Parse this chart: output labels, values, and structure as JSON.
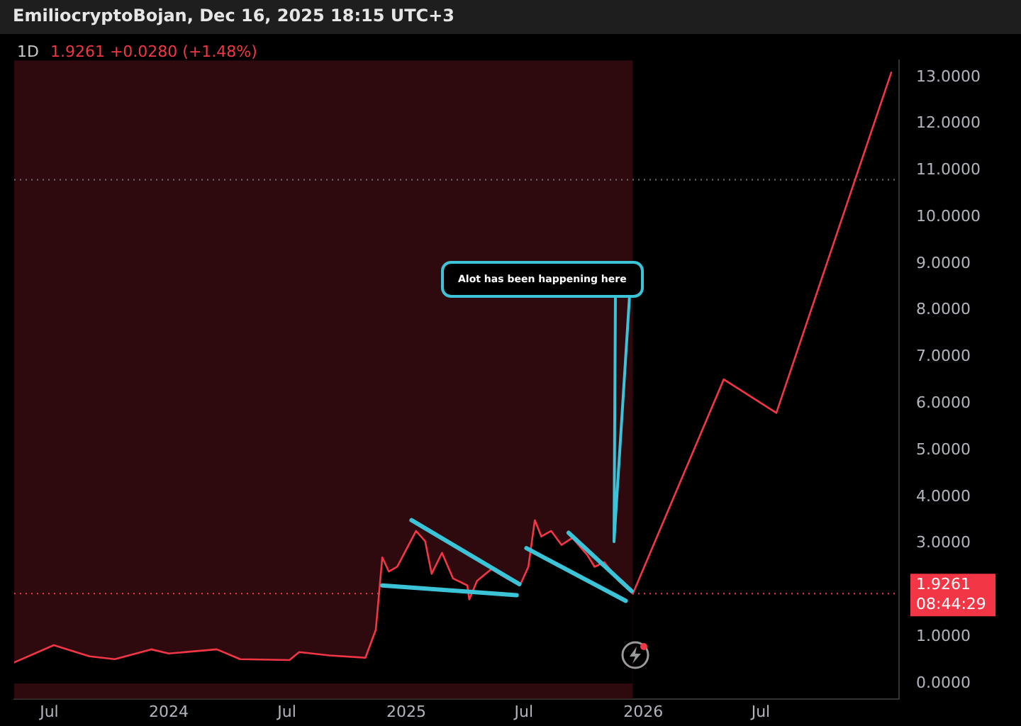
{
  "chart_data": {
    "type": "area",
    "title": "EmiliocryptoBojan, Dec 16, 2025 18:15 UTC+3",
    "subtitle": "1D",
    "annotations": [
      "1.9261 +0.0280 (+1.48%)",
      "Alot has been happening here",
      "08:44:29"
    ],
    "xlim": [
      "2023-05-08",
      "2027-01-30"
    ],
    "xticks": [
      {
        "value": "2023-07-01",
        "label": "Jul"
      },
      {
        "value": "2024-01-01",
        "label": "2024"
      },
      {
        "value": "2024-07-01",
        "label": "Jul"
      },
      {
        "value": "2025-01-01",
        "label": "2025"
      },
      {
        "value": "2025-07-01",
        "label": "Jul"
      },
      {
        "value": "2026-01-01",
        "label": "2026"
      },
      {
        "value": "2026-07-01",
        "label": "Jul"
      }
    ],
    "ylim": [
      -0.33,
      13.36
    ],
    "yticks": [
      {
        "value": 0,
        "label": "0.0000"
      },
      {
        "value": 1,
        "label": "1.0000"
      },
      {
        "value": 3,
        "label": "3.0000"
      },
      {
        "value": 4,
        "label": "4.0000"
      },
      {
        "value": 5,
        "label": "5.0000"
      },
      {
        "value": 6,
        "label": "6.0000"
      },
      {
        "value": 7,
        "label": "7.0000"
      },
      {
        "value": 8,
        "label": "8.0000"
      },
      {
        "value": 9,
        "label": "9.0000"
      },
      {
        "value": 10,
        "label": "10.0000"
      },
      {
        "value": 11,
        "label": "11.0000"
      },
      {
        "value": 12,
        "label": "12.0000"
      },
      {
        "value": 13,
        "label": "13.0000"
      }
    ],
    "grid": false,
    "legend": false,
    "bands": [
      {
        "axis": "x",
        "from": "2023-05-08",
        "to": "2025-12-16",
        "color": "#2e0a0e"
      }
    ],
    "ref_lines": [
      {
        "axis": "y",
        "value": 10.8,
        "color": "#6f6f6f",
        "line_style": "dotted"
      },
      {
        "axis": "y",
        "value": 1.9261,
        "label": "1.9261",
        "color": "#f23645",
        "line_style": "dotted"
      }
    ],
    "series": [
      {
        "type": "area",
        "color": "#f23645",
        "x": [
          "2023-05-08",
          "2023-07-08",
          "2023-09-01",
          "2023-10-10",
          "2023-12-05",
          "2024-01-01",
          "2024-03-15",
          "2024-04-20",
          "2024-07-05",
          "2024-07-20",
          "2024-09-05",
          "2024-10-30",
          "2024-11-15",
          "2024-11-25",
          "2024-12-05",
          "2024-12-18",
          "2025-01-16",
          "2025-01-30",
          "2025-02-09",
          "2025-02-25",
          "2025-03-14",
          "2025-04-05",
          "2025-04-08",
          "2025-04-20",
          "2025-05-12",
          "2025-06-05",
          "2025-06-25",
          "2025-07-08",
          "2025-07-18",
          "2025-07-28",
          "2025-08-12",
          "2025-08-28",
          "2025-09-14",
          "2025-10-07",
          "2025-10-18",
          "2025-11-02",
          "2025-11-24",
          "2025-12-16"
        ],
        "values": [
          0.45,
          0.82,
          0.58,
          0.52,
          0.73,
          0.64,
          0.73,
          0.52,
          0.5,
          0.67,
          0.6,
          0.55,
          1.15,
          2.7,
          2.4,
          2.5,
          3.27,
          3.05,
          2.35,
          2.8,
          2.25,
          2.1,
          1.8,
          2.2,
          2.45,
          2.25,
          2.1,
          2.5,
          3.5,
          3.15,
          3.27,
          2.97,
          3.12,
          2.75,
          2.5,
          2.6,
          2.2,
          1.9261
        ]
      },
      {
        "type": "line",
        "color": "#f23645",
        "x": [
          "2025-12-16",
          "2026-05-05",
          "2026-07-25",
          "2027-01-18"
        ],
        "values": [
          1.9261,
          6.52,
          5.8,
          13.1
        ]
      },
      {
        "type": "line",
        "color": "#3bc4d8",
        "x": [
          "2025-01-09",
          "2025-06-24"
        ],
        "values": [
          3.5,
          2.13
        ]
      },
      {
        "type": "line",
        "color": "#3bc4d8",
        "x": [
          "2024-11-25",
          "2025-06-20"
        ],
        "values": [
          2.1,
          1.89
        ]
      },
      {
        "type": "line",
        "color": "#3bc4d8",
        "x": [
          "2025-07-05",
          "2025-12-05"
        ],
        "values": [
          2.9,
          1.77
        ]
      },
      {
        "type": "line",
        "color": "#3bc4d8",
        "x": [
          "2025-09-08",
          "2025-12-14"
        ],
        "values": [
          3.23,
          1.98
        ]
      }
    ]
  }
}
